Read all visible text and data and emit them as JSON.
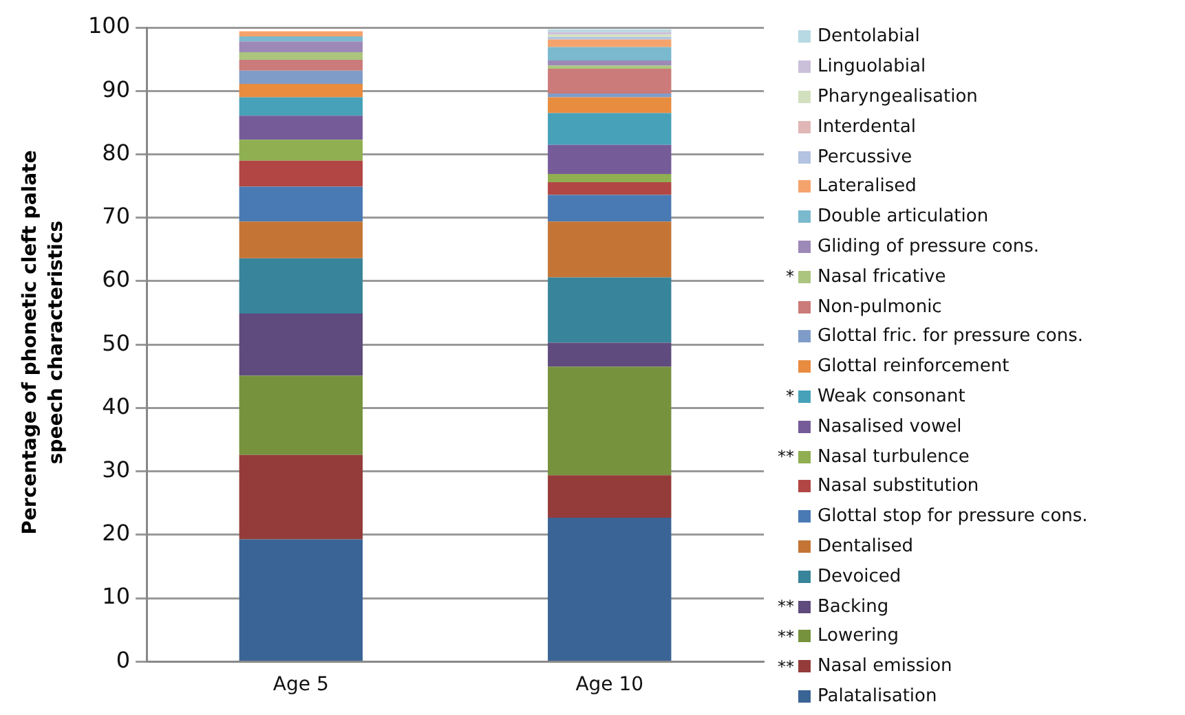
{
  "chart_data": {
    "type": "bar",
    "stacked": true,
    "ylabel": "Percentage of phonetic cleft palate speech characteristics",
    "categories": [
      "Age 5",
      "Age 10"
    ],
    "ylim": [
      0,
      100
    ],
    "yticks": [
      0,
      10,
      20,
      30,
      40,
      50,
      60,
      70,
      80,
      90,
      100
    ],
    "grid": "y",
    "legend": "right",
    "series": [
      {
        "name": "Palatalisation",
        "color": "#3b6496",
        "values": [
          19.3,
          22.7
        ]
      },
      {
        "name": "** Nasal emission",
        "color": "#943c3a",
        "values": [
          13.3,
          6.7
        ]
      },
      {
        "name": "** Lowering",
        "color": "#77923d",
        "values": [
          12.5,
          17.1
        ]
      },
      {
        "name": "** Backing",
        "color": "#5f4b7d",
        "values": [
          9.8,
          3.8
        ]
      },
      {
        "name": "Devoiced",
        "color": "#38849a",
        "values": [
          8.7,
          10.3
        ]
      },
      {
        "name": "Dentalised",
        "color": "#c47535",
        "values": [
          5.8,
          8.8
        ]
      },
      {
        "name": "Glottal stop for pressure cons.",
        "color": "#4a7ab4",
        "values": [
          5.5,
          4.2
        ]
      },
      {
        "name": "Nasal substitution",
        "color": "#b24644",
        "values": [
          4.1,
          2.0
        ]
      },
      {
        "name": "** Nasal turbulence",
        "color": "#8faf50",
        "values": [
          3.3,
          1.3
        ]
      },
      {
        "name": "Nasalised vowel",
        "color": "#765b99",
        "values": [
          3.8,
          4.6
        ]
      },
      {
        "name": "* Weak consonant",
        "color": "#46a1b9",
        "values": [
          2.9,
          5.0
        ]
      },
      {
        "name": "Glottal reinforcement",
        "color": "#e88c3f",
        "values": [
          2.1,
          2.5
        ]
      },
      {
        "name": "Glottal fric. for pressure cons.",
        "color": "#7f9cc9",
        "values": [
          2.1,
          0.6
        ]
      },
      {
        "name": "Non-pulmonic",
        "color": "#cb7b79",
        "values": [
          1.7,
          3.9
        ]
      },
      {
        "name": "* Nasal fricative",
        "color": "#abc57f",
        "values": [
          1.2,
          0.5
        ]
      },
      {
        "name": "Gliding of pressure cons.",
        "color": "#9d89b7",
        "values": [
          1.7,
          0.8
        ]
      },
      {
        "name": "Double articulation",
        "color": "#7ab9ce",
        "values": [
          0.8,
          2.1
        ]
      },
      {
        "name": "Lateralised",
        "color": "#f5a36d",
        "values": [
          0.8,
          1.2
        ]
      },
      {
        "name": "Percussive",
        "color": "#b3c3e0",
        "values": [
          null,
          0.4
        ]
      },
      {
        "name": "Interdental",
        "color": "#e0b7b6",
        "values": [
          0,
          null
        ]
      },
      {
        "name": "Pharyngealisation",
        "color": "#d3e0bf",
        "values": [
          null,
          0.4
        ]
      },
      {
        "name": "Linguolabial",
        "color": "#cbc0da",
        "values": [
          0,
          0.4
        ]
      },
      {
        "name": "Dentolabial",
        "color": "#b7d9e3",
        "values": [
          0,
          0.4
        ]
      }
    ]
  }
}
